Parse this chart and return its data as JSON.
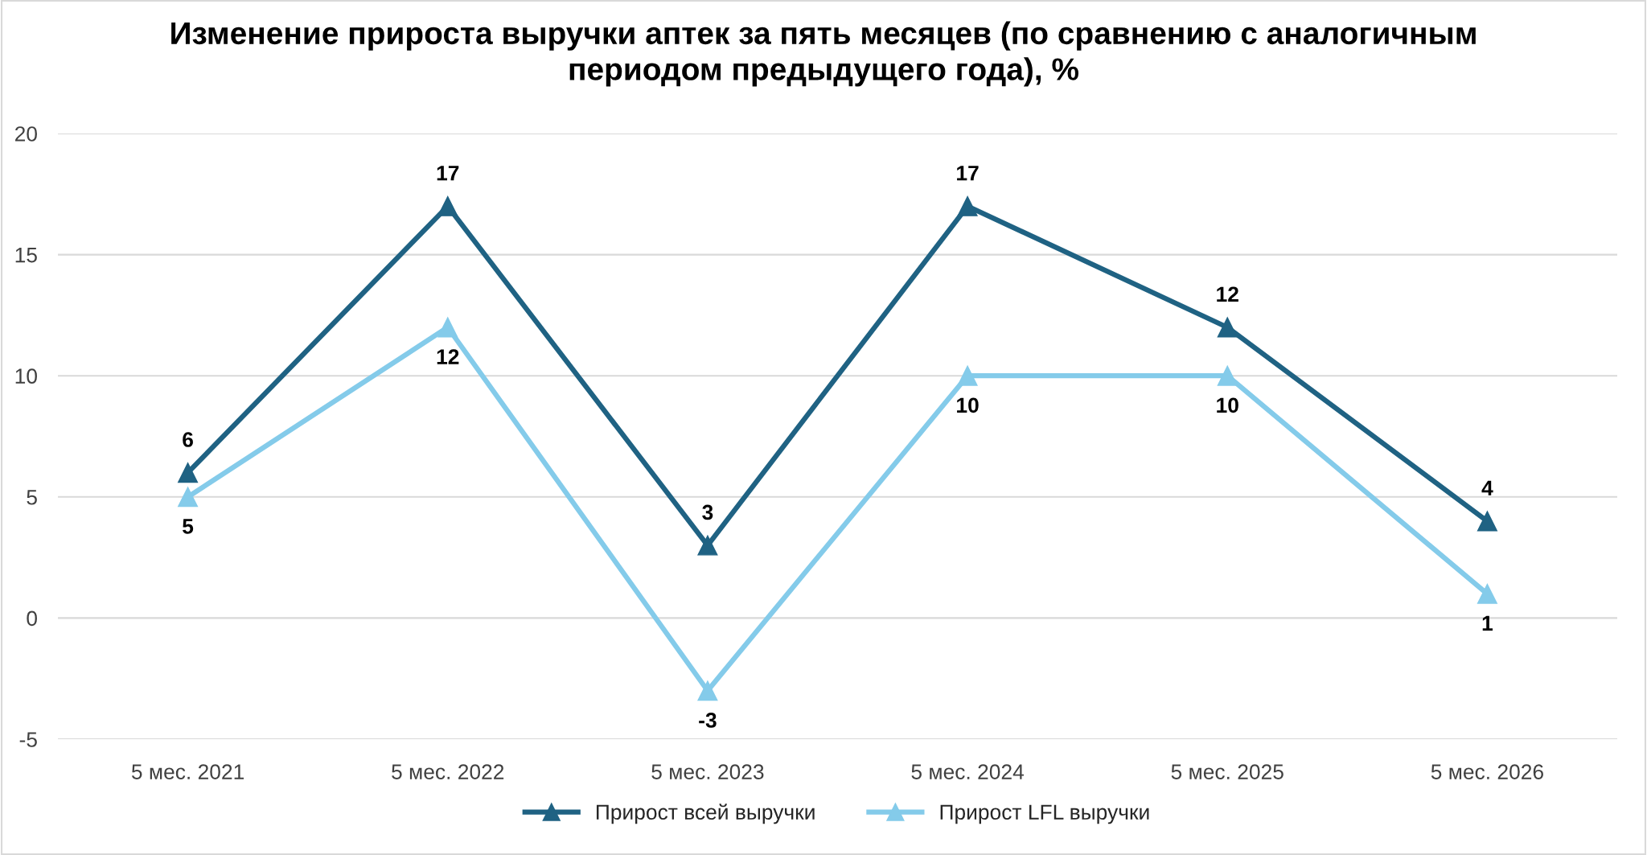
{
  "chart_data": {
    "type": "line",
    "title": "Изменение прироста выручки аптек за пять месяцев (по сравнению с аналогичным\nпериодом предыдущего года), %",
    "categories": [
      "5 мес. 2021",
      "5 мес. 2022",
      "5 мес. 2023",
      "5 мес. 2024",
      "5 мес. 2025",
      "5 мес. 2026"
    ],
    "series": [
      {
        "name": "Прирост всей выручки",
        "color": "#1f6283",
        "values": [
          6,
          17,
          3,
          17,
          12,
          4
        ]
      },
      {
        "name": "Прирост LFL выручки",
        "color": "#84cbea",
        "values": [
          5,
          12,
          -3,
          10,
          10,
          1
        ]
      }
    ],
    "ylim": [
      -5,
      20
    ],
    "yticks": [
      -5,
      0,
      5,
      10,
      15,
      20
    ],
    "grid": "y",
    "legend": "bottom",
    "marker": "triangle",
    "line_style": "solid",
    "data_labels": true
  }
}
